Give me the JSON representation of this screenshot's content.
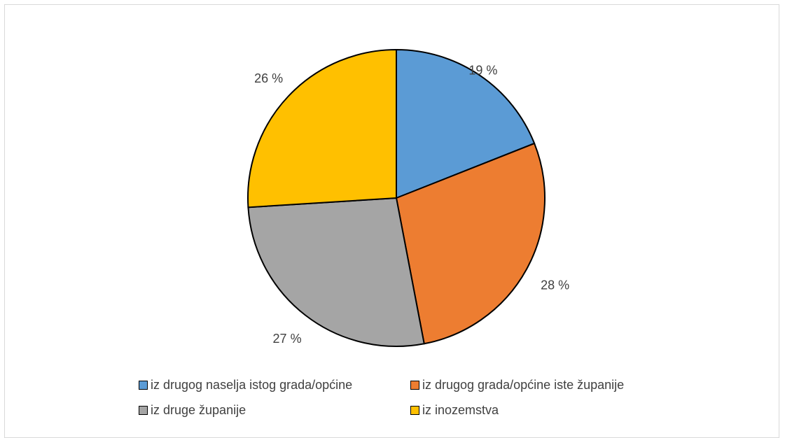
{
  "chart_data": {
    "type": "pie",
    "title": "",
    "slices": [
      {
        "label": "iz drugog naselja istog grada/općine",
        "value": 19,
        "display": "19 %",
        "color": "#5b9bd5"
      },
      {
        "label": "iz drugog grada/općine iste županije",
        "value": 28,
        "display": "28 %",
        "color": "#ed7d31"
      },
      {
        "label": "iz druge županije",
        "value": 27,
        "display": "27 %",
        "color": "#a5a5a5"
      },
      {
        "label": "iz inozemstva",
        "value": 26,
        "display": "26 %",
        "color": "#ffc000"
      }
    ],
    "legend_position": "bottom",
    "unit": "%"
  }
}
